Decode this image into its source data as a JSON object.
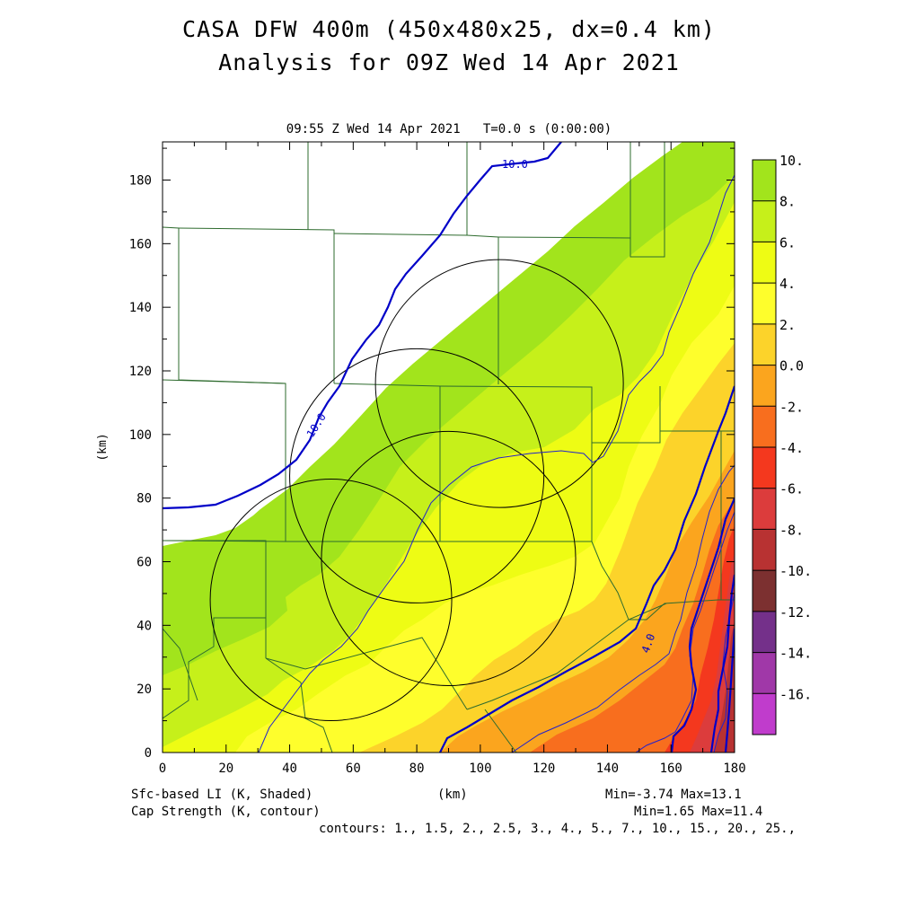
{
  "header": {
    "title_line1": "CASA DFW 400m (450x480x25, dx=0.4 km)",
    "title_line2": "Analysis for 09Z Wed 14 Apr 2021",
    "time_line": "09:55 Z Wed 14 Apr 2021   T=0.0 s (0:00:00)"
  },
  "axes": {
    "x_label": "(km)",
    "y_label": "(km)",
    "x_ticks": [
      "0",
      "20",
      "40",
      "60",
      "80",
      "100",
      "120",
      "140",
      "160",
      "180"
    ],
    "y_ticks": [
      "0",
      "20",
      "40",
      "60",
      "80",
      "100",
      "120",
      "140",
      "160",
      "180"
    ],
    "xlim": [
      0,
      180
    ],
    "ylim": [
      0,
      192
    ]
  },
  "colorbar": {
    "labels": [
      "10.",
      "8.",
      "6.",
      "4.",
      "2.",
      "0.0",
      "-2.",
      "-4.",
      "-6.",
      "-8.",
      "-10.",
      "-12.",
      "-14.",
      "-16."
    ],
    "colors": [
      "#a2e41c",
      "#c6f01a",
      "#eefc14",
      "#fefe2c",
      "#fcd32a",
      "#fba51e",
      "#f86e1e",
      "#f4381e",
      "#dc3c3c",
      "#b83232",
      "#7c3030",
      "#74308a",
      "#a038a8",
      "#c03ccc",
      "#dc50e6"
    ]
  },
  "contours": {
    "cap_color": "#0000c8",
    "labels": [
      "10.0",
      "10.0",
      "4.0"
    ]
  },
  "footer": {
    "field1": "Sfc-based LI (K, Shaded)",
    "field2": "Cap Strength (K, contour)",
    "x_unit": "(km)",
    "minmax1": "Min=-3.74 Max=13.1",
    "minmax2": "Min=1.65 Max=11.4",
    "contour_list": "contours: 1., 1.5, 2., 2.5, 3., 4., 5., 7., 10., 15., 20., 25.,"
  },
  "radars": [
    {
      "x": 53,
      "y": 48,
      "r": 38
    },
    {
      "x": 80,
      "y": 87,
      "r": 40
    },
    {
      "x": 90,
      "y": 61,
      "r": 40
    },
    {
      "x": 106,
      "y": 116,
      "r": 39
    }
  ]
}
